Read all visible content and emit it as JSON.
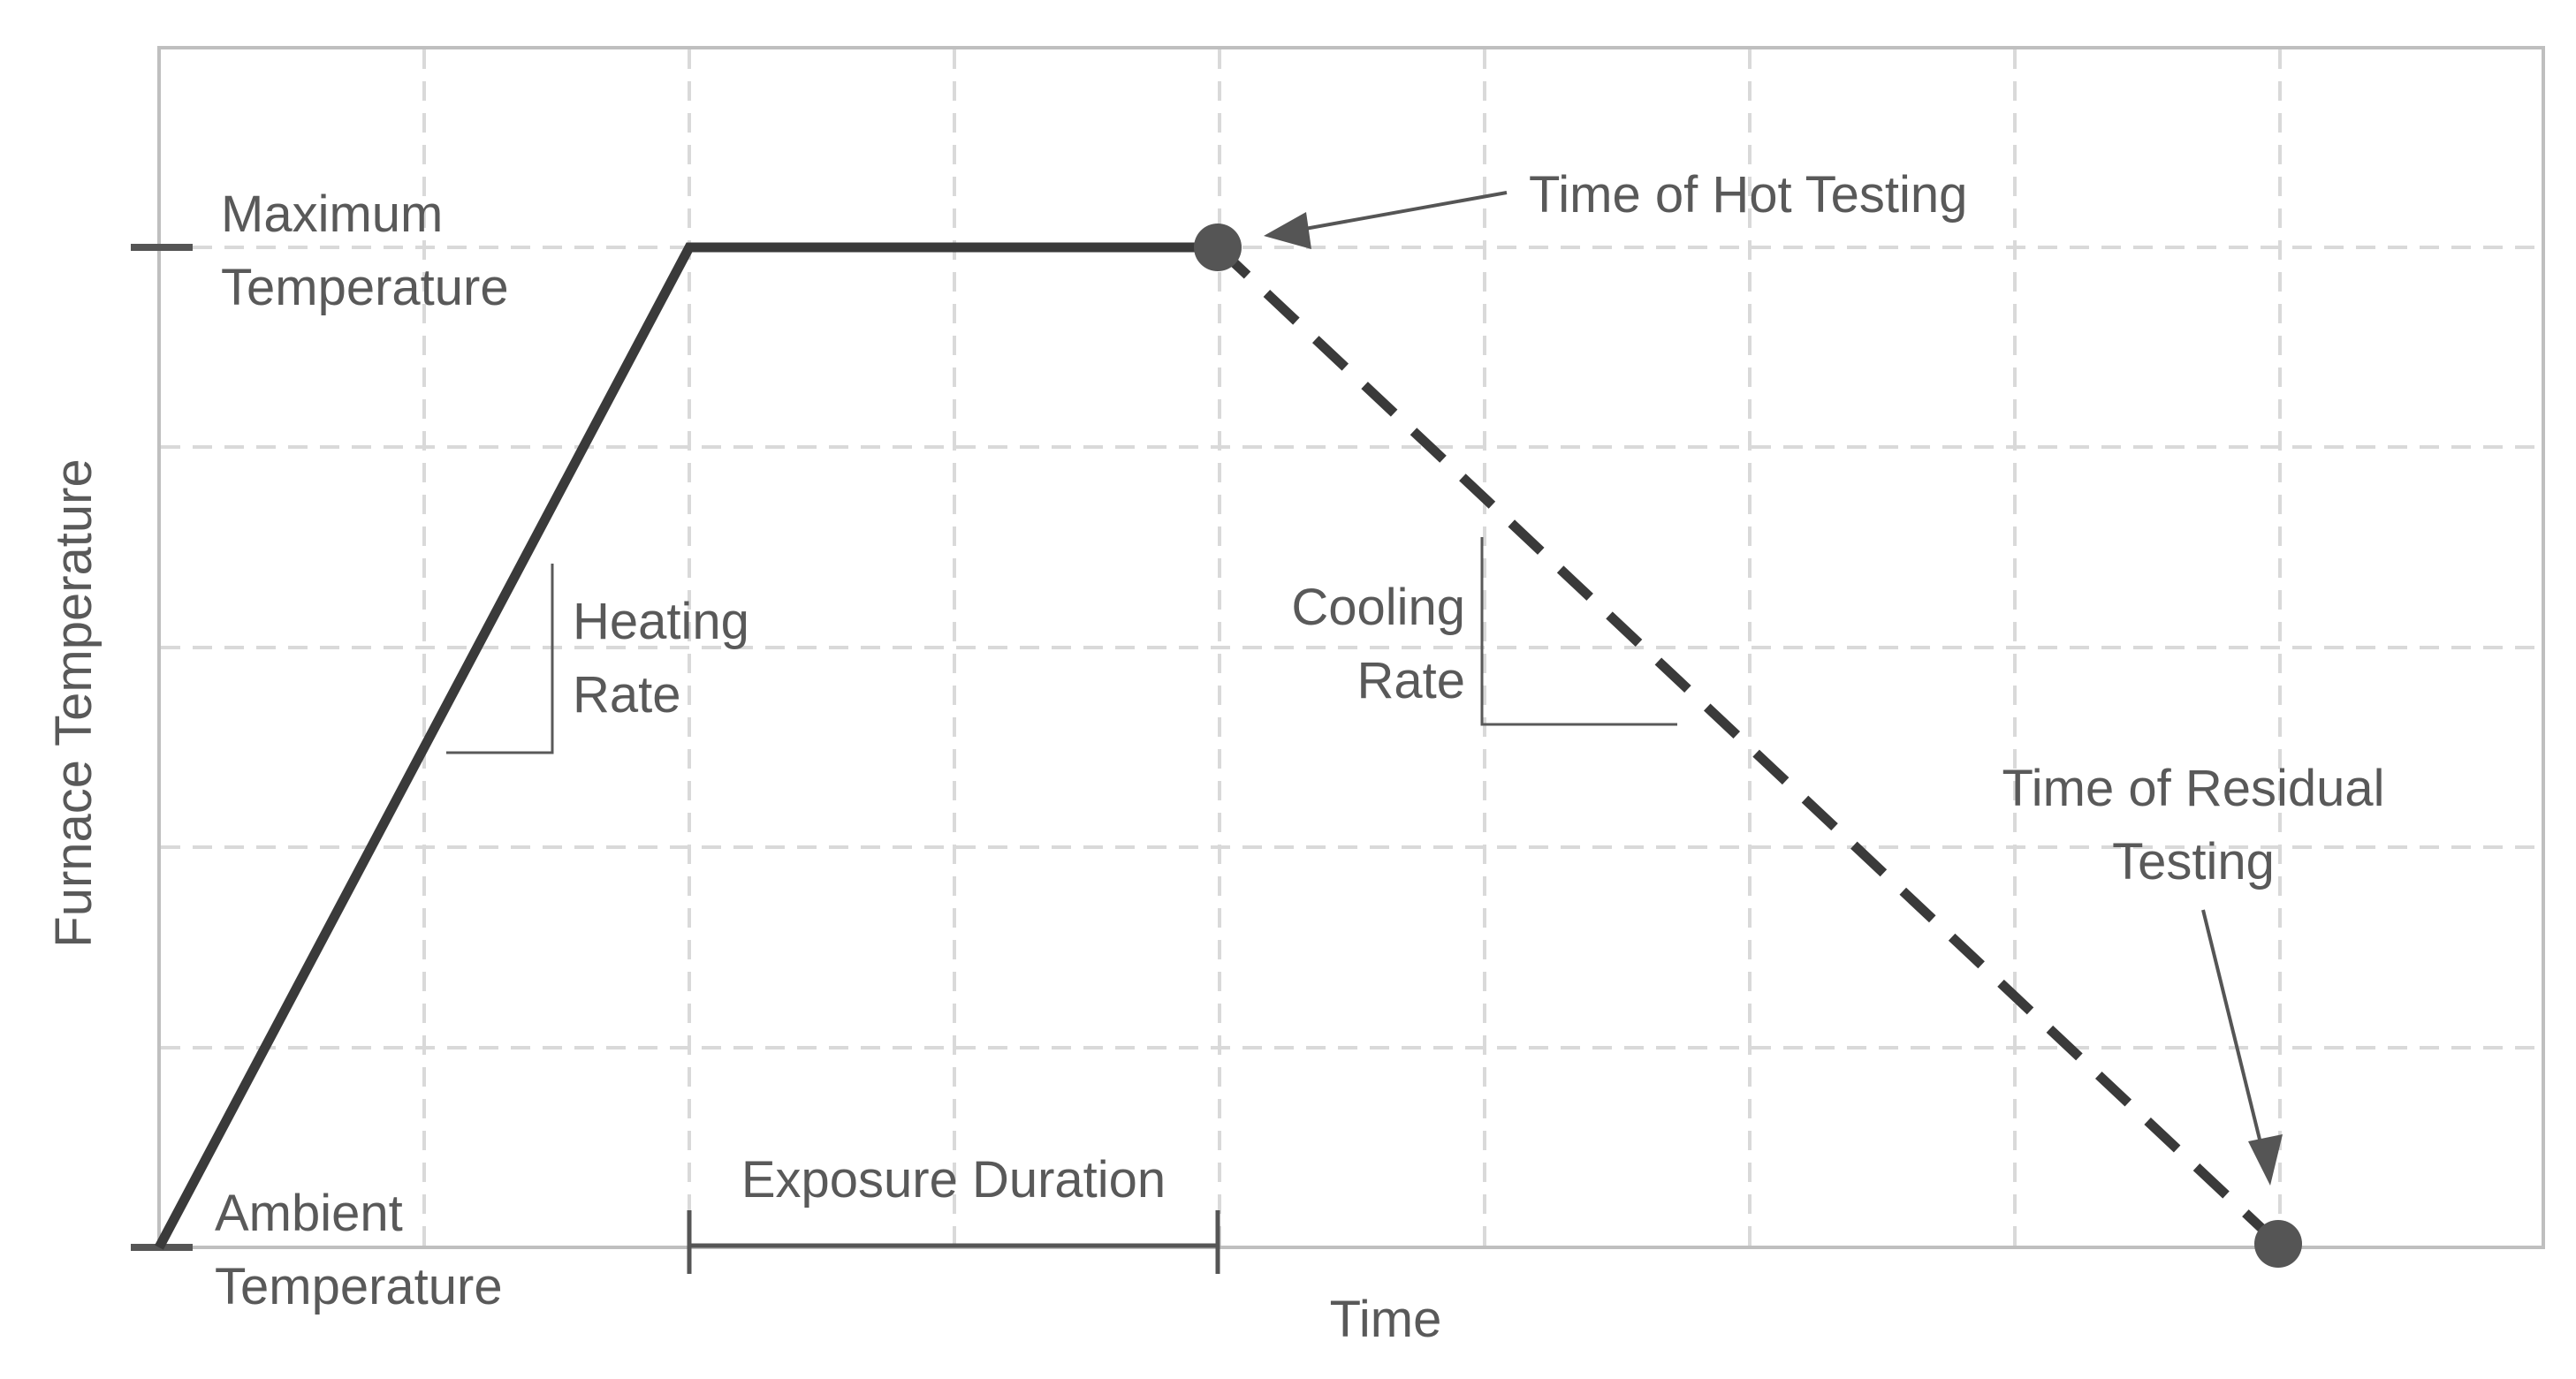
{
  "diagram": {
    "labels": {
      "y_axis": "Furnace Temperature",
      "x_axis": "Time",
      "max_temp_line1": "Maximum",
      "max_temp_line2": "Temperature",
      "ambient_temp_line1": "Ambient",
      "ambient_temp_line2": "Temperature",
      "heating_rate_line1": "Heating",
      "heating_rate_line2": "Rate",
      "cooling_rate_line1": "Cooling",
      "cooling_rate_line2": "Rate",
      "exposure_duration": "Exposure Duration",
      "hot_testing": "Time of Hot Testing",
      "residual_testing_line1": "Time of Residual",
      "residual_testing_line2": "Testing"
    },
    "colors": {
      "curve": "#3a3a3a",
      "grid": "#d9d9d9",
      "frame": "#bfbfbf",
      "text": "#595959",
      "marker": "#555555"
    }
  }
}
